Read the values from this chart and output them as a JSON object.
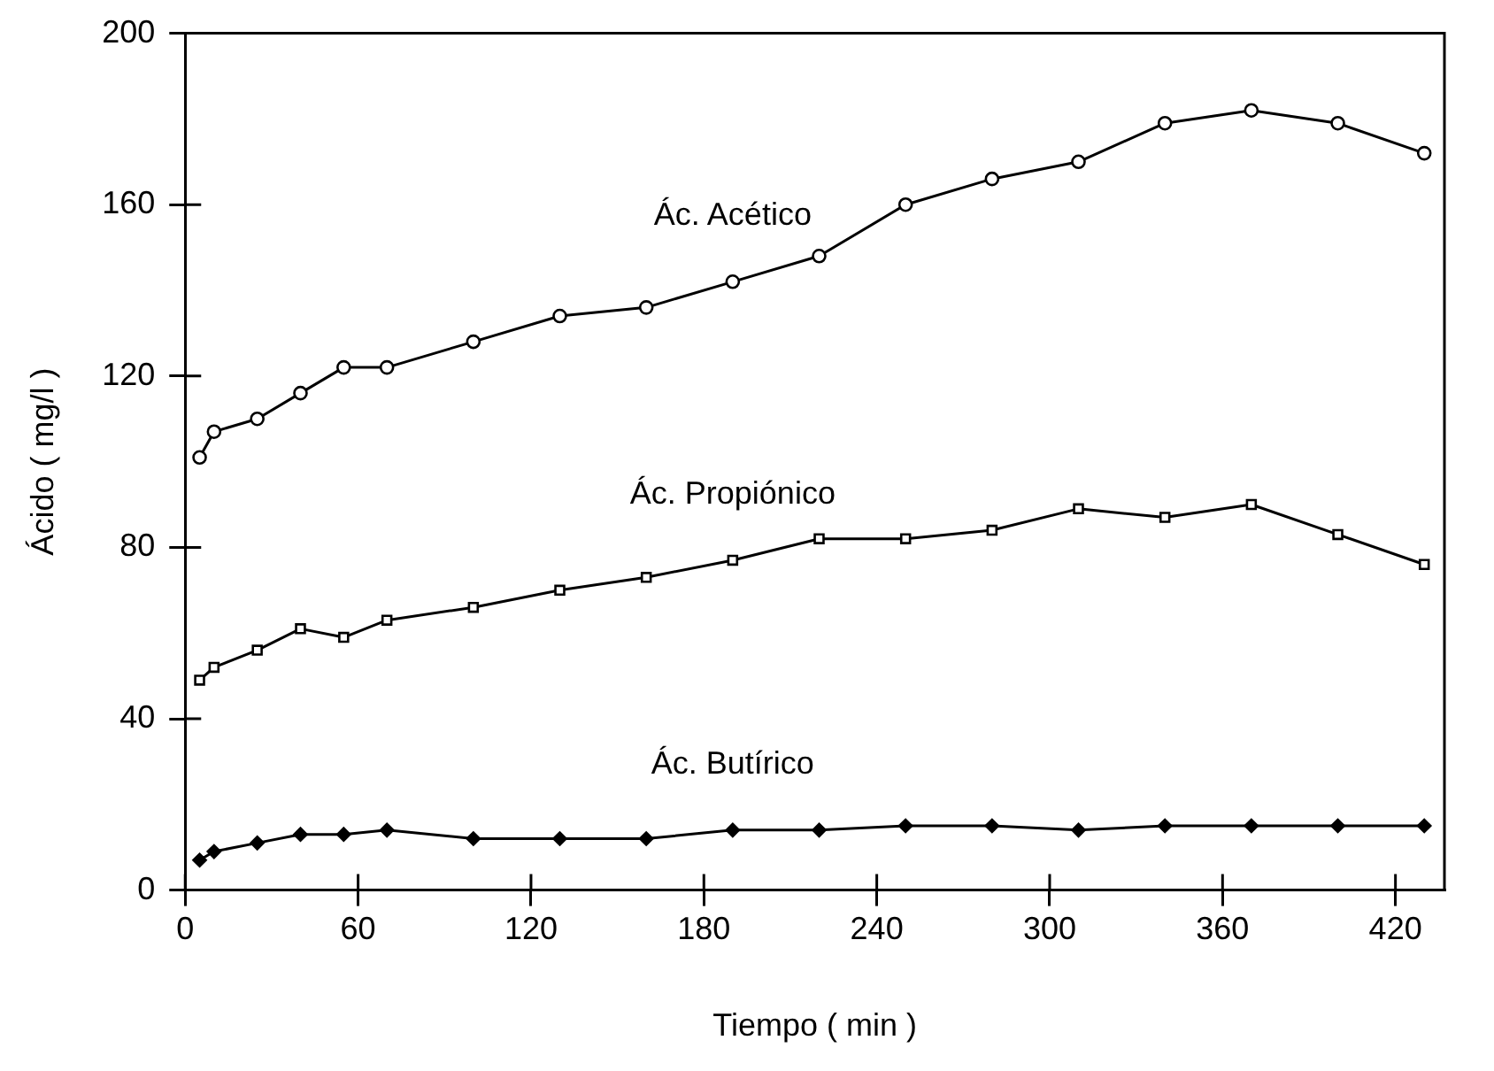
{
  "chart_data": {
    "type": "line",
    "xlabel": "Tiempo ( min )",
    "ylabel": "Ácido ( mg/l )",
    "x": [
      5,
      10,
      25,
      40,
      55,
      70,
      100,
      130,
      160,
      190,
      220,
      250,
      280,
      310,
      340,
      370,
      400,
      430
    ],
    "xlim": [
      0,
      437
    ],
    "xticks": [
      0,
      60,
      120,
      180,
      240,
      300,
      360,
      420
    ],
    "ylim": [
      0,
      200
    ],
    "yticks": [
      0,
      40,
      80,
      120,
      160,
      200
    ],
    "grid": false,
    "legend": false,
    "line_style": "solid",
    "series": [
      {
        "name": "Ác. Acético",
        "color": "#000000",
        "marker": "circle",
        "values": [
          101,
          107,
          110,
          116,
          122,
          122,
          128,
          134,
          136,
          142,
          148,
          160,
          166,
          170,
          179,
          182,
          179,
          172
        ]
      },
      {
        "name": "Ác. Propiónico",
        "color": "#000000",
        "marker": "square",
        "values": [
          49,
          52,
          56,
          61,
          59,
          63,
          66,
          70,
          73,
          77,
          82,
          82,
          84,
          89,
          87,
          90,
          83,
          76
        ]
      },
      {
        "name": "Ác. Butírico",
        "color": "#000000",
        "marker": "diamond",
        "values": [
          7,
          9,
          11,
          13,
          13,
          14,
          12,
          12,
          12,
          14,
          14,
          15,
          15,
          14,
          15,
          15,
          15,
          15
        ]
      }
    ]
  }
}
